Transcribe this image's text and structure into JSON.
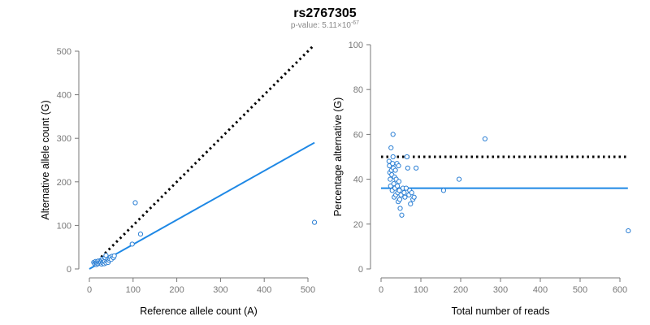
{
  "title": "rs2767305",
  "subtitle": {
    "prefix": "p-value: 5.11×10",
    "exponent": "-67"
  },
  "colors": {
    "points": "#2b7fd4",
    "fit_line": "#1e88e5",
    "reference_line": "#000000",
    "axis": "#777777"
  },
  "chart_data": [
    {
      "type": "scatter",
      "xlabel": "Reference allele count (A)",
      "ylabel": "Alternative allele count (G)",
      "xlim": [
        0,
        520
      ],
      "ylim": [
        0,
        500
      ],
      "xticks": [
        0,
        100,
        200,
        300,
        400,
        500
      ],
      "yticks": [
        0,
        100,
        200,
        300,
        400,
        500
      ],
      "grid": false,
      "reference_line": {
        "style": "dotted",
        "slope": 1,
        "intercept": 0,
        "x_range": [
          10,
          515
        ]
      },
      "fit_line": {
        "style": "solid",
        "from": [
          0,
          0
        ],
        "to": [
          515,
          290
        ]
      },
      "points": [
        [
          10,
          15
        ],
        [
          12,
          12
        ],
        [
          14,
          17
        ],
        [
          15,
          14
        ],
        [
          16,
          10
        ],
        [
          17,
          13
        ],
        [
          18,
          16
        ],
        [
          20,
          12
        ],
        [
          20,
          18
        ],
        [
          22,
          15
        ],
        [
          24,
          13
        ],
        [
          25,
          19
        ],
        [
          26,
          15
        ],
        [
          28,
          11
        ],
        [
          28,
          20
        ],
        [
          30,
          14
        ],
        [
          30,
          23
        ],
        [
          32,
          16
        ],
        [
          33,
          21
        ],
        [
          34,
          12
        ],
        [
          35,
          17
        ],
        [
          36,
          26
        ],
        [
          38,
          14
        ],
        [
          38,
          31
        ],
        [
          40,
          18
        ],
        [
          42,
          22
        ],
        [
          43,
          15
        ],
        [
          45,
          20
        ],
        [
          46,
          24
        ],
        [
          48,
          27
        ],
        [
          50,
          22
        ],
        [
          52,
          29
        ],
        [
          55,
          26
        ],
        [
          57,
          30
        ],
        [
          98,
          57
        ],
        [
          105,
          152
        ],
        [
          117,
          80
        ],
        [
          515,
          107
        ]
      ]
    },
    {
      "type": "scatter",
      "xlabel": "Total number of reads",
      "ylabel": "Percentage alternative (G)",
      "xlim": [
        0,
        620
      ],
      "ylim": [
        0,
        100
      ],
      "xticks": [
        0,
        100,
        200,
        300,
        400,
        500,
        600
      ],
      "yticks": [
        0,
        20,
        40,
        60,
        80,
        100
      ],
      "grid": false,
      "reference_line": {
        "style": "dotted",
        "y": 50,
        "x_range": [
          0,
          620
        ]
      },
      "fit_line": {
        "style": "solid",
        "y": 36,
        "x_range": [
          0,
          620
        ]
      },
      "points": [
        [
          20,
          48
        ],
        [
          21,
          46
        ],
        [
          22,
          43
        ],
        [
          23,
          40
        ],
        [
          24,
          37
        ],
        [
          25,
          54
        ],
        [
          26,
          44
        ],
        [
          27,
          42
        ],
        [
          28,
          35
        ],
        [
          29,
          47
        ],
        [
          30,
          60
        ],
        [
          30,
          50
        ],
        [
          31,
          45
        ],
        [
          32,
          38
        ],
        [
          33,
          32
        ],
        [
          34,
          41
        ],
        [
          35,
          36
        ],
        [
          36,
          44
        ],
        [
          37,
          33
        ],
        [
          38,
          40
        ],
        [
          40,
          47
        ],
        [
          41,
          37
        ],
        [
          42,
          34
        ],
        [
          43,
          30
        ],
        [
          44,
          46
        ],
        [
          45,
          39
        ],
        [
          46,
          35
        ],
        [
          47,
          31
        ],
        [
          48,
          27
        ],
        [
          50,
          33
        ],
        [
          52,
          24
        ],
        [
          55,
          36
        ],
        [
          58,
          34
        ],
        [
          60,
          32
        ],
        [
          63,
          36
        ],
        [
          65,
          50
        ],
        [
          67,
          45
        ],
        [
          70,
          33
        ],
        [
          72,
          35
        ],
        [
          74,
          29
        ],
        [
          77,
          34
        ],
        [
          80,
          31
        ],
        [
          83,
          32
        ],
        [
          88,
          45
        ],
        [
          157,
          35
        ],
        [
          196,
          40
        ],
        [
          261,
          58
        ],
        [
          621,
          17
        ]
      ]
    }
  ]
}
